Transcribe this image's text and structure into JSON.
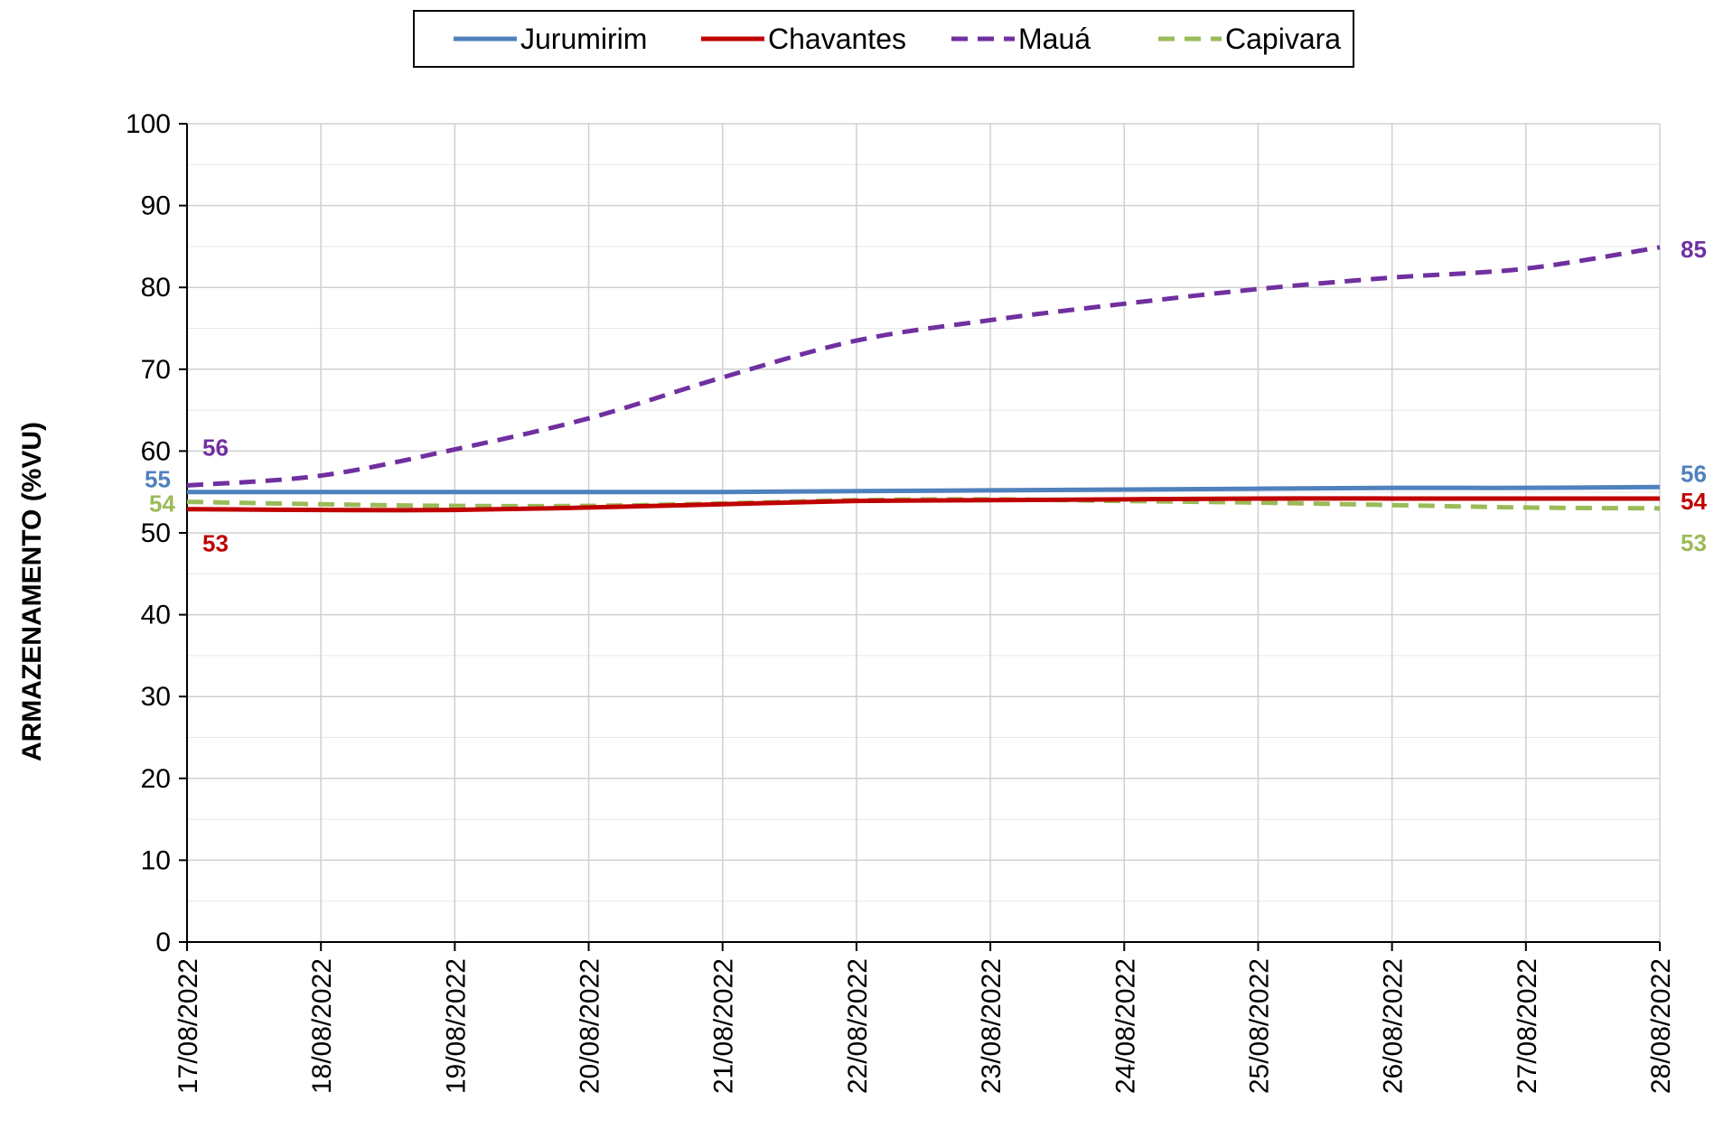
{
  "chart_data": {
    "type": "line",
    "ylabel": "ARMAZENAMENTO (%VU)",
    "xlabel": "",
    "ylim": [
      0,
      100
    ],
    "yticks": [
      0,
      10,
      20,
      30,
      40,
      50,
      60,
      70,
      80,
      90,
      100
    ],
    "grid": true,
    "legend_position": "top-center",
    "x": [
      "17/08/2022",
      "18/08/2022",
      "19/08/2022",
      "20/08/2022",
      "21/08/2022",
      "22/08/2022",
      "23/08/2022",
      "24/08/2022",
      "25/08/2022",
      "26/08/2022",
      "27/08/2022",
      "28/08/2022"
    ],
    "series": [
      {
        "name": "Jurumirim",
        "color": "#4f81bd",
        "dash": "solid",
        "values": [
          55.0,
          55.0,
          55.0,
          55.0,
          55.0,
          55.1,
          55.2,
          55.3,
          55.4,
          55.5,
          55.5,
          55.6
        ],
        "start_label": "55",
        "end_label": "56"
      },
      {
        "name": "Chavantes",
        "color": "#c00000",
        "dash": "solid",
        "values": [
          52.9,
          52.8,
          52.8,
          53.1,
          53.5,
          53.9,
          54.0,
          54.1,
          54.2,
          54.2,
          54.2,
          54.2
        ],
        "start_label": "53",
        "end_label": "54"
      },
      {
        "name": "Mauá",
        "color": "#7030a0",
        "dash": "dashed",
        "values": [
          55.8,
          57.0,
          60.2,
          64.0,
          69.0,
          73.5,
          76.0,
          78.0,
          79.8,
          81.2,
          82.3,
          84.9
        ],
        "start_label": "56",
        "end_label": "85"
      },
      {
        "name": "Capivara",
        "color": "#9bbb59",
        "dash": "dashed",
        "values": [
          53.8,
          53.5,
          53.3,
          53.3,
          53.6,
          54.0,
          54.1,
          53.9,
          53.7,
          53.4,
          53.1,
          53.0
        ],
        "start_label": "54",
        "end_label": "53"
      }
    ]
  }
}
